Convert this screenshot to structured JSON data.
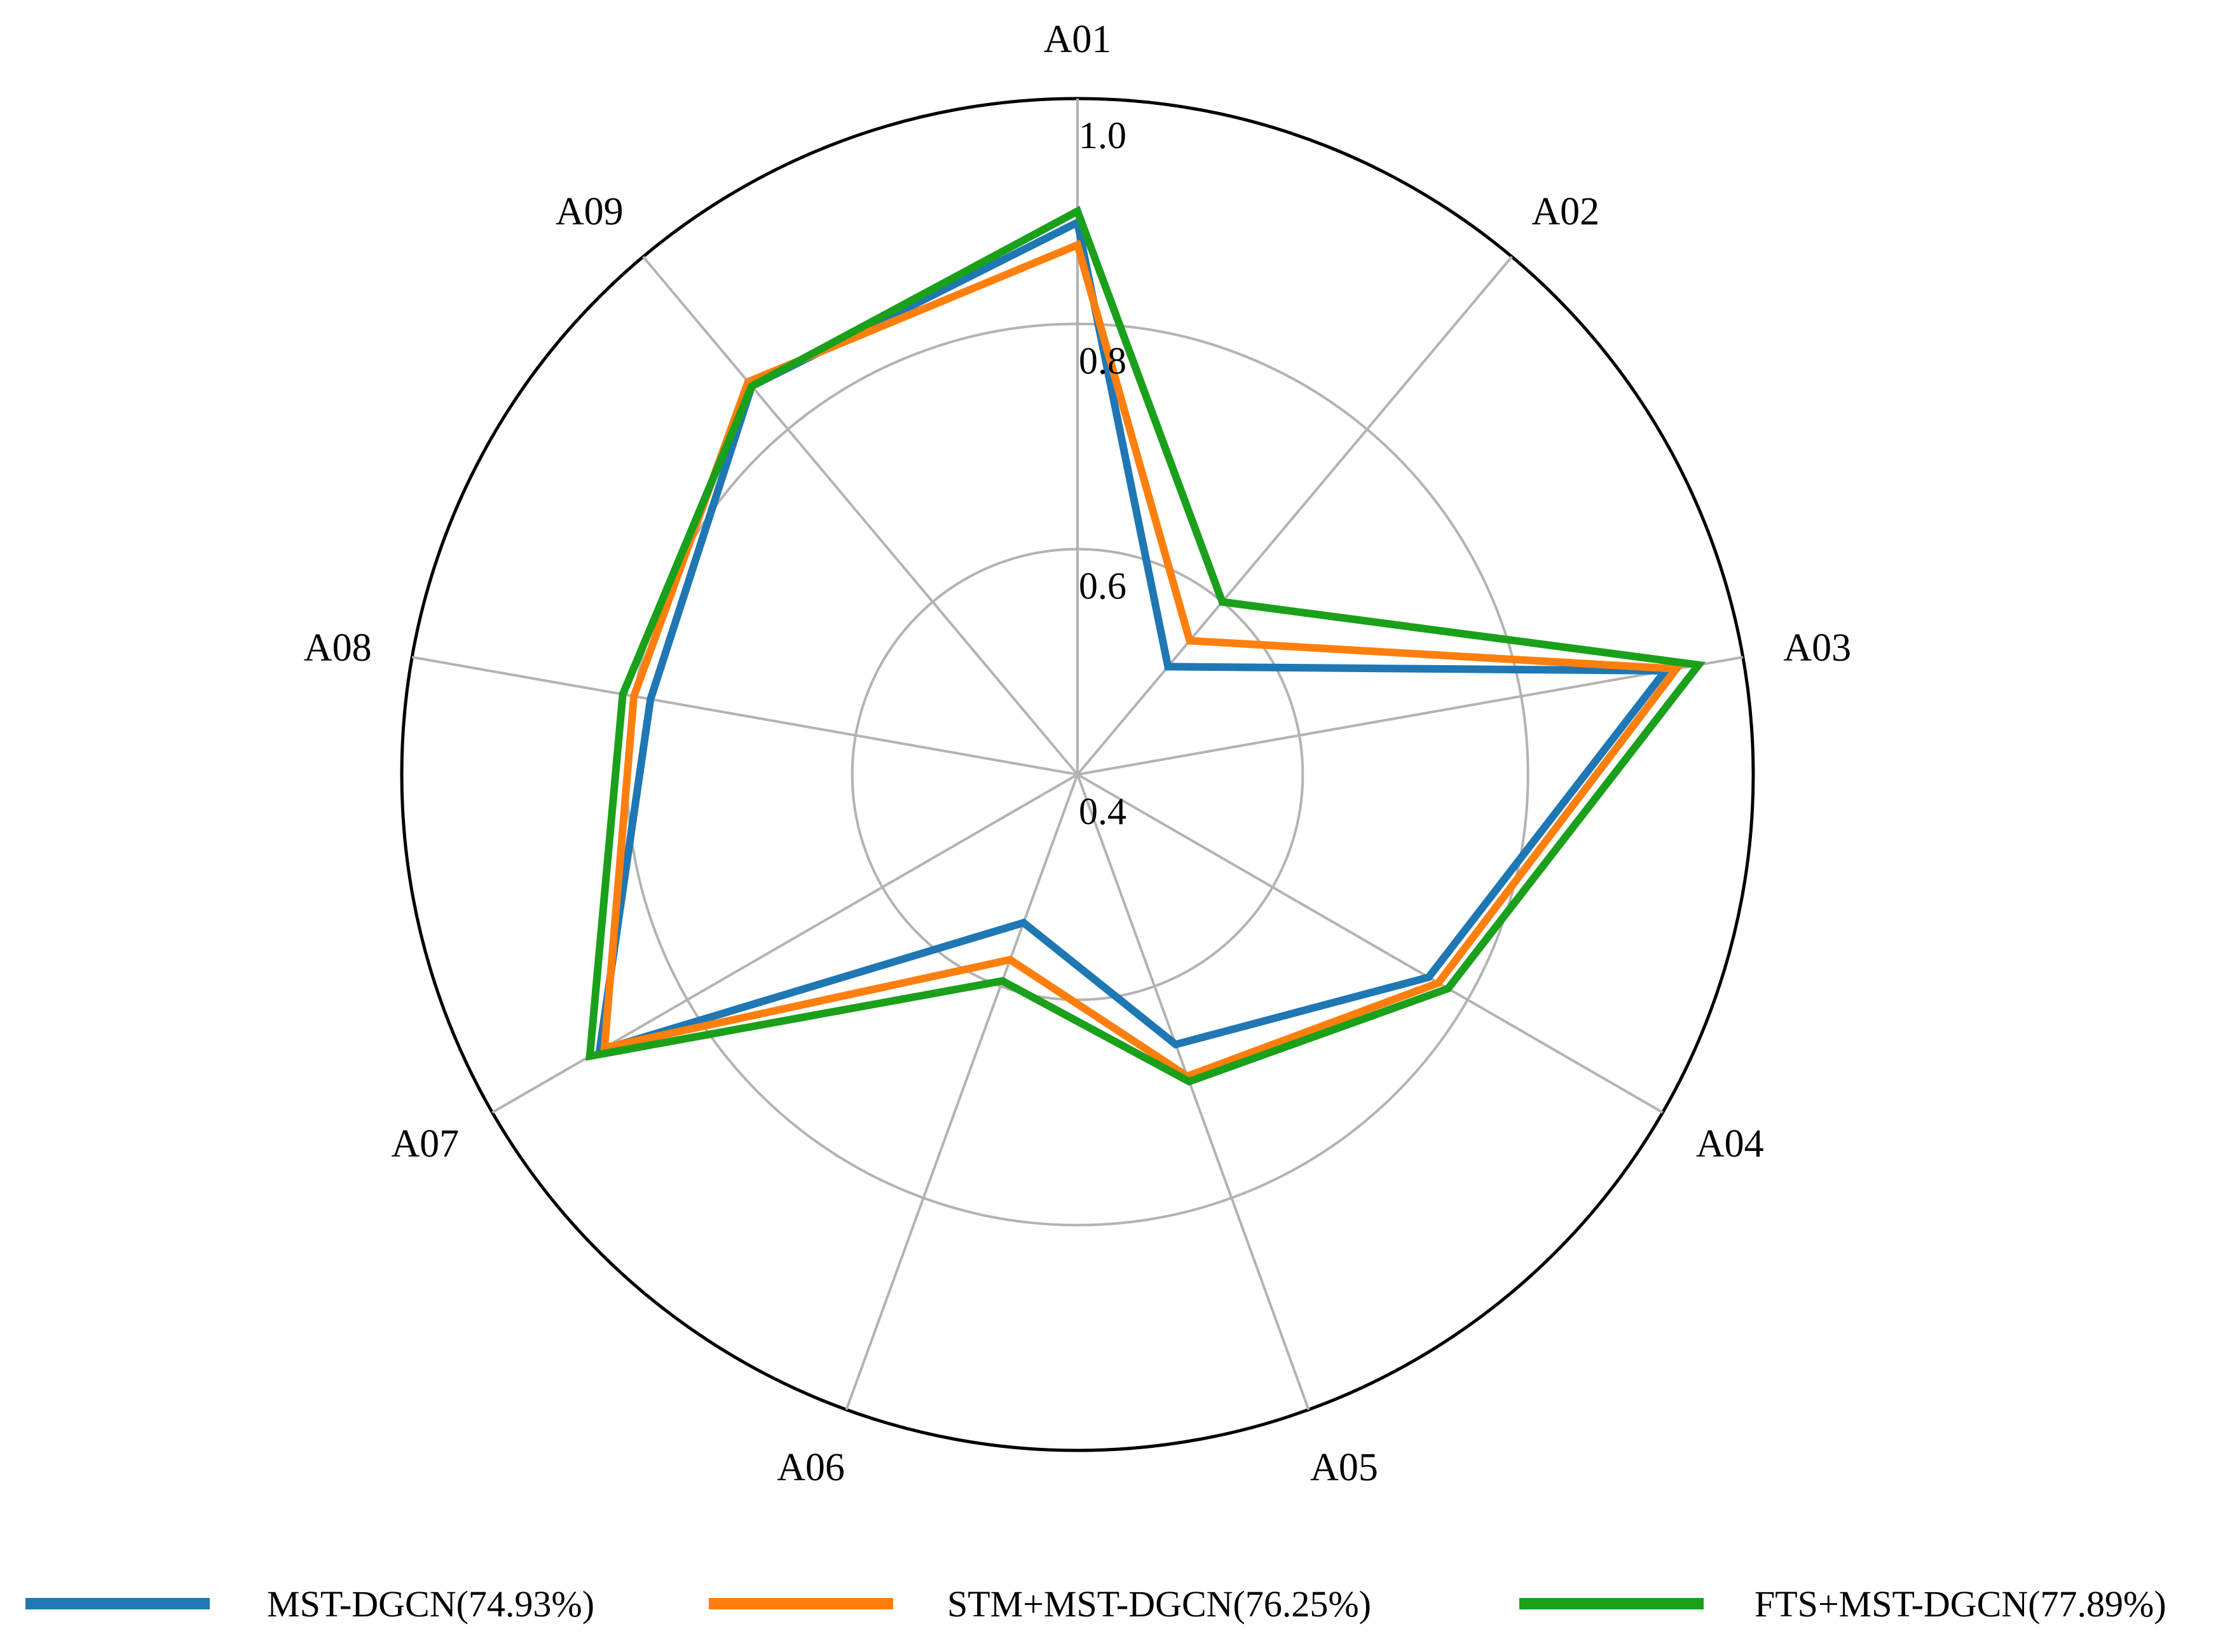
{
  "chart_data": {
    "type": "radar",
    "categories": [
      "A01",
      "A02",
      "A03",
      "A04",
      "A05",
      "A06",
      "A07",
      "A08",
      "A09"
    ],
    "rlim": [
      0.4,
      1.0
    ],
    "rticks": [
      0.4,
      0.6,
      0.8,
      1.0
    ],
    "rtick_labels": [
      "0.4",
      "0.6",
      "0.8",
      "1.0"
    ],
    "grid": true,
    "legend_position": "bottom",
    "series": [
      {
        "name": "MST-DGCN(74.93%)",
        "color": "#1f77b4",
        "values": [
          0.89,
          0.525,
          0.93,
          0.76,
          0.655,
          0.54,
          0.89,
          0.785,
          0.85
        ]
      },
      {
        "name": "STM+MST-DGCN(76.25%)",
        "color": "#ff7f0e",
        "values": [
          0.87,
          0.555,
          0.94,
          0.77,
          0.685,
          0.575,
          0.885,
          0.8,
          0.855
        ]
      },
      {
        "name": "FTS+MST-DGCN(77.89%)",
        "color": "#1aa01a",
        "values": [
          0.9,
          0.6,
          0.96,
          0.78,
          0.69,
          0.595,
          0.9,
          0.81,
          0.85
        ]
      }
    ]
  }
}
